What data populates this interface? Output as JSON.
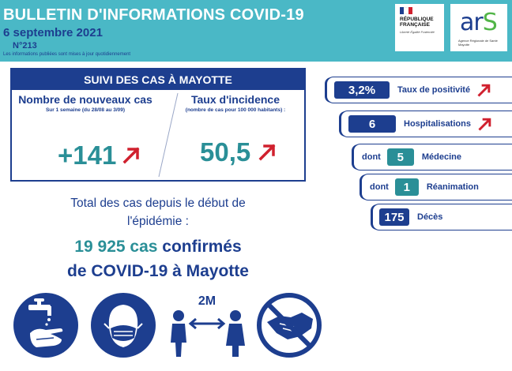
{
  "header": {
    "title": "BULLETIN D'INFORMATIONS COVID-19",
    "date": "6 septembre 2021",
    "number": "N°213",
    "note": "Les informations publiées sont mises à jour quotidiennement",
    "logo_rf": {
      "line1": "RÉPUBLIQUE",
      "line2": "FRANÇAISE",
      "motto": "Liberté Égalité Fraternité"
    },
    "logo_ars": {
      "word_a": "ar",
      "word_s": "S",
      "sub": "Agence Régionale de Santé Mayotte"
    }
  },
  "suivi": {
    "title": "SUIVI DES CAS À MAYOTTE",
    "new_cases": {
      "title": "Nombre de nouveaux cas",
      "subtitle": "Sur 1 semaine (du 28/08 au 3/09)",
      "value": "+141",
      "trend": "up"
    },
    "incidence": {
      "title": "Taux d'incidence",
      "subtitle": "(nombre de cas pour 100 000 habitants) :",
      "value": "50,5",
      "trend": "up"
    }
  },
  "totals": {
    "line1": "Total des cas depuis le début de",
    "line2": "l'épidémie :",
    "count": "19 925 cas",
    "confirmed": "confirmés",
    "line4": "de COVID-19 à Mayotte"
  },
  "indicators": [
    {
      "value": "3,2%",
      "label": "Taux de positivité",
      "trend": "up"
    },
    {
      "value": "6",
      "label": "Hospitalisations",
      "trend": "up"
    },
    {
      "prefix": "dont",
      "value": "5",
      "label": "Médecine"
    },
    {
      "prefix": "dont",
      "value": "1",
      "label": "Réanimation"
    },
    {
      "value": "175",
      "label": "Décès"
    }
  ],
  "icons": {
    "distance_label": "2M",
    "names": [
      "handwashing-icon",
      "face-mask-icon",
      "social-distancing-icon",
      "no-handshake-icon"
    ]
  },
  "colors": {
    "navy": "#1d3e8f",
    "teal": "#2a8f97",
    "header_bg": "#4ab8c6",
    "arrow_red": "#d0202e",
    "ars_green": "#52b548"
  }
}
